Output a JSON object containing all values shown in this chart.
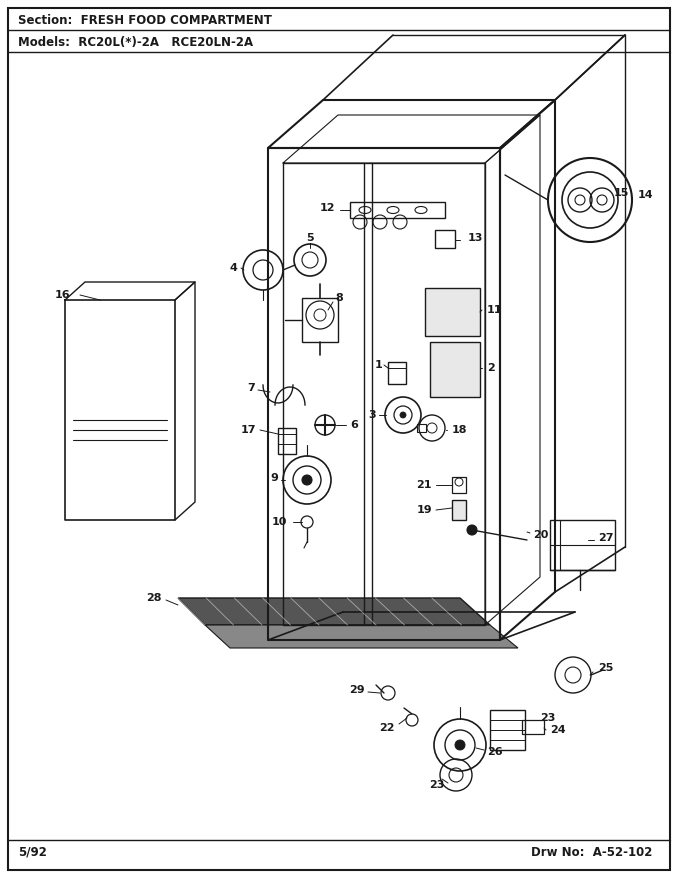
{
  "section_text": "Section:  FRESH FOOD COMPARTMENT",
  "models_text": "Models:  RC20L(*)-2A   RCE20LN-2A",
  "date_text": "5/92",
  "drw_text": "Drw No:  A-52-102",
  "bg_color": "#ffffff",
  "line_color": "#1a1a1a",
  "text_color": "#1a1a1a",
  "gray_fill": "#cccccc",
  "light_gray": "#e8e8e8"
}
